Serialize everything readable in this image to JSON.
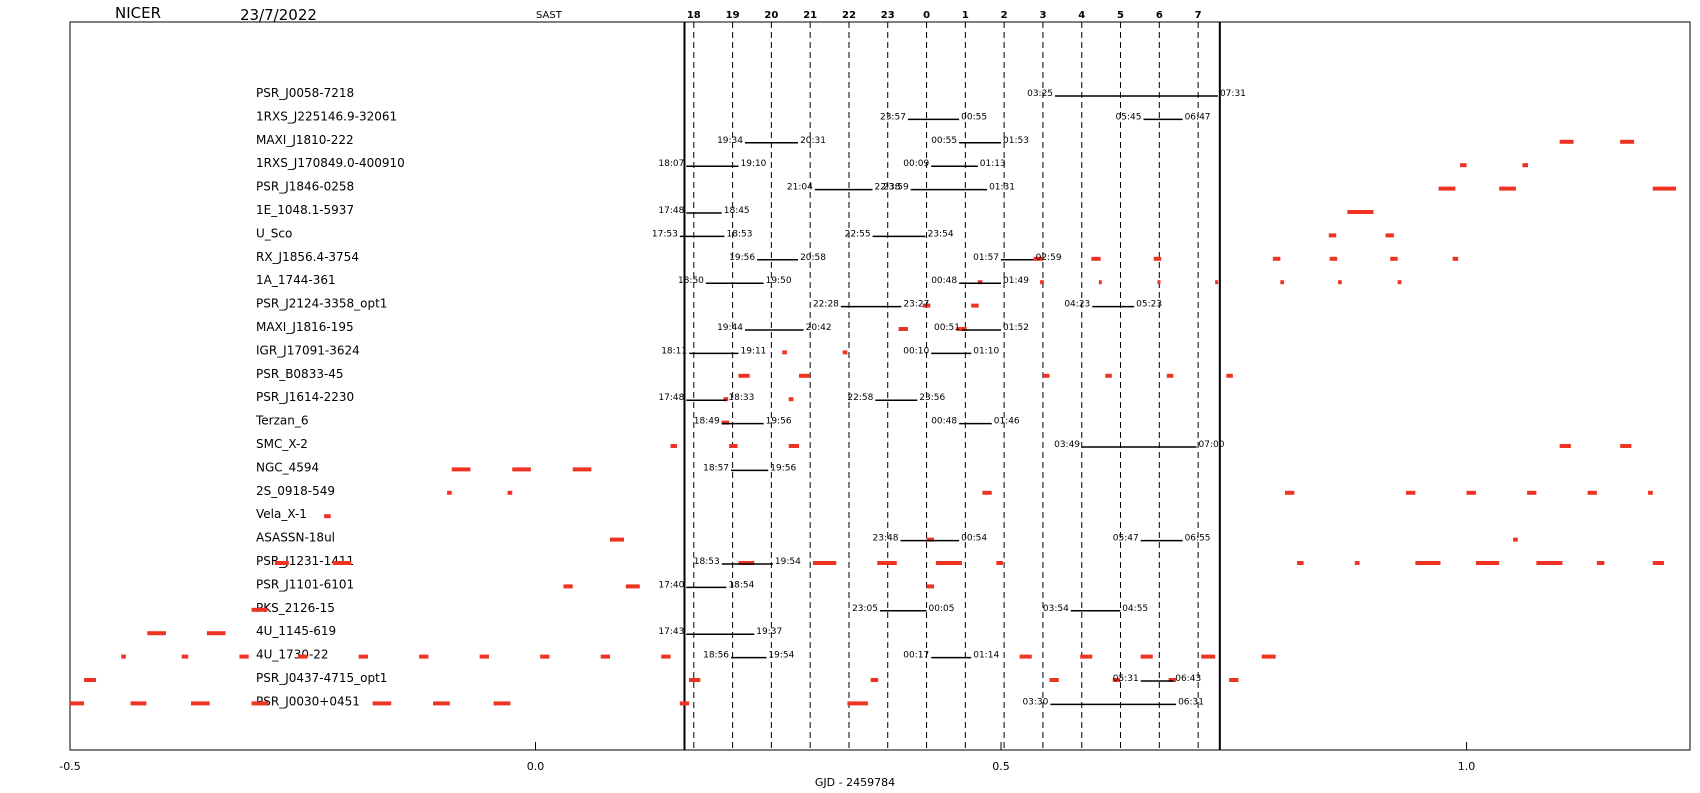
{
  "header": {
    "instrument": "NICER",
    "date": "23/7/2022",
    "tz": "SAST"
  },
  "colors": {
    "visibility": "#ee3322",
    "axis": "#000000"
  },
  "chart_data": {
    "type": "scatter",
    "xlabel": "GJD -  2459784",
    "xlim": [
      -0.5,
      1.24
    ],
    "xticks": [
      {
        "v": -0.5,
        "label": "-0.5"
      },
      {
        "v": 0.0,
        "label": "0.0"
      },
      {
        "v": 0.5,
        "label": "0.5"
      },
      {
        "v": 1.0,
        "label": "1.0"
      }
    ],
    "night_window": [
      0.16,
      0.735
    ],
    "hour_marks": [
      {
        "label": "18",
        "x": 0.17
      },
      {
        "label": "19",
        "x": 0.2117
      },
      {
        "label": "20",
        "x": 0.2533
      },
      {
        "label": "21",
        "x": 0.295
      },
      {
        "label": "22",
        "x": 0.3367
      },
      {
        "label": "23",
        "x": 0.3783
      },
      {
        "label": "0",
        "x": 0.42
      },
      {
        "label": "1",
        "x": 0.4617
      },
      {
        "label": "2",
        "x": 0.5033
      },
      {
        "label": "3",
        "x": 0.545
      },
      {
        "label": "4",
        "x": 0.5867
      },
      {
        "label": "5",
        "x": 0.6283
      },
      {
        "label": "6",
        "x": 0.67
      },
      {
        "label": "7",
        "x": 0.7117
      }
    ],
    "targets": [
      {
        "name": "PSR_J0058-7218",
        "windows": [
          {
            "s": 0.558,
            "e": 0.733,
            "ls": "03:25",
            "le": "07:31"
          }
        ],
        "marks": []
      },
      {
        "name": "1RXS_J225146.9-32061",
        "windows": [
          {
            "s": 0.4,
            "e": 0.455,
            "ls": "23:57",
            "le": "00:55"
          },
          {
            "s": 0.653,
            "e": 0.695,
            "ls": "05:45",
            "le": "06:47"
          }
        ],
        "marks": []
      },
      {
        "name": "MAXI_J1810-222",
        "windows": [
          {
            "s": 0.225,
            "e": 0.282,
            "ls": "19:34",
            "le": "20:31"
          },
          {
            "s": 0.455,
            "e": 0.5,
            "ls": "00:55",
            "le": "01:53"
          }
        ],
        "marks": [
          [
            1.1,
            1.115
          ],
          [
            1.165,
            1.18
          ]
        ]
      },
      {
        "name": "1RXS_J170849.0-400910",
        "windows": [
          {
            "s": 0.162,
            "e": 0.218,
            "ls": "18:07",
            "le": "19:10"
          },
          {
            "s": 0.425,
            "e": 0.475,
            "ls": "00:09",
            "le": "01:13"
          }
        ],
        "marks": [
          [
            0.993,
            1.0
          ],
          [
            1.06,
            1.066
          ]
        ]
      },
      {
        "name": "PSR_J1846-0258",
        "windows": [
          {
            "s": 0.3,
            "e": 0.362,
            "ls": "21:04",
            "le": "22:38"
          },
          {
            "s": 0.403,
            "e": 0.485,
            "ls": "23:59",
            "le": "01:31"
          }
        ],
        "marks": [
          [
            0.97,
            0.988
          ],
          [
            1.035,
            1.053
          ],
          [
            1.2,
            1.225
          ]
        ]
      },
      {
        "name": "1E_1048.1-5937",
        "windows": [
          {
            "s": 0.162,
            "e": 0.2,
            "ls": "17:48",
            "le": "18:45"
          }
        ],
        "marks": [
          [
            0.872,
            0.9
          ]
        ]
      },
      {
        "name": "U_Sco",
        "windows": [
          {
            "s": 0.155,
            "e": 0.203,
            "ls": "17:53",
            "le": "18:53"
          },
          {
            "s": 0.362,
            "e": 0.419,
            "ls": "22:55",
            "le": "23:54"
          }
        ],
        "marks": [
          [
            0.852,
            0.86
          ],
          [
            0.913,
            0.922
          ]
        ]
      },
      {
        "name": "RX_J1856.4-3754",
        "windows": [
          {
            "s": 0.238,
            "e": 0.282,
            "ls": "19:56",
            "le": "20:58"
          },
          {
            "s": 0.5,
            "e": 0.535,
            "ls": "01:57",
            "le": "02:59"
          }
        ],
        "marks": [
          [
            0.535,
            0.545
          ],
          [
            0.597,
            0.607
          ],
          [
            0.664,
            0.672
          ],
          [
            0.792,
            0.8
          ],
          [
            0.853,
            0.861
          ],
          [
            0.918,
            0.926
          ],
          [
            0.985,
            0.991
          ]
        ]
      },
      {
        "name": "1A_1744-361",
        "windows": [
          {
            "s": 0.183,
            "e": 0.245,
            "ls": "18:50",
            "le": "19:50"
          },
          {
            "s": 0.455,
            "e": 0.5,
            "ls": "00:48",
            "le": "01:49"
          }
        ],
        "marks": [
          [
            0.475,
            0.48
          ],
          [
            0.542,
            0.546
          ],
          [
            0.605,
            0.608
          ],
          [
            0.668,
            0.671
          ],
          [
            0.73,
            0.733
          ],
          [
            0.8,
            0.804
          ],
          [
            0.862,
            0.866
          ],
          [
            0.926,
            0.93
          ]
        ]
      },
      {
        "name": "PSR_J2124-3358_opt1",
        "windows": [
          {
            "s": 0.328,
            "e": 0.393,
            "ls": "22:28",
            "le": "23:27"
          },
          {
            "s": 0.598,
            "e": 0.643,
            "ls": "04:23",
            "le": "05:23"
          }
        ],
        "marks": [
          [
            0.416,
            0.424
          ],
          [
            0.468,
            0.476
          ]
        ]
      },
      {
        "name": "MAXI_J1816-195",
        "windows": [
          {
            "s": 0.225,
            "e": 0.288,
            "ls": "19:44",
            "le": "20:42"
          },
          {
            "s": 0.458,
            "e": 0.5,
            "ls": "00:51",
            "le": "01:52"
          }
        ],
        "marks": [
          [
            0.39,
            0.4
          ],
          [
            0.452,
            0.463
          ]
        ]
      },
      {
        "name": "IGR_J17091-3624",
        "windows": [
          {
            "s": 0.165,
            "e": 0.218,
            "ls": "18:11",
            "le": "19:11"
          },
          {
            "s": 0.425,
            "e": 0.468,
            "ls": "00:10",
            "le": "01:10"
          }
        ],
        "marks": [
          [
            0.265,
            0.27
          ],
          [
            0.33,
            0.335
          ]
        ]
      },
      {
        "name": "PSR_B0833-45",
        "windows": [],
        "marks": [
          [
            0.218,
            0.23
          ],
          [
            0.283,
            0.295
          ],
          [
            0.545,
            0.552
          ],
          [
            0.612,
            0.619
          ],
          [
            0.678,
            0.685
          ],
          [
            0.742,
            0.749
          ]
        ]
      },
      {
        "name": "PSR_J1614-2230",
        "windows": [
          {
            "s": 0.162,
            "e": 0.205,
            "ls": "17:48",
            "le": "18:33"
          },
          {
            "s": 0.365,
            "e": 0.41,
            "ls": "22:58",
            "le": "23:56"
          }
        ],
        "marks": [
          [
            0.202,
            0.207
          ],
          [
            0.272,
            0.277
          ]
        ]
      },
      {
        "name": "Terzan_6",
        "windows": [
          {
            "s": 0.2,
            "e": 0.245,
            "ls": "18:49",
            "le": "19:56"
          },
          {
            "s": 0.455,
            "e": 0.49,
            "ls": "00:48",
            "le": "01:46"
          }
        ],
        "marks": [
          [
            0.2,
            0.208
          ]
        ]
      },
      {
        "name": "SMC_X-2",
        "windows": [
          {
            "s": 0.587,
            "e": 0.71,
            "ls": "03:49",
            "le": "07:00"
          }
        ],
        "marks": [
          [
            0.145,
            0.152
          ],
          [
            0.208,
            0.217
          ],
          [
            0.272,
            0.283
          ],
          [
            1.1,
            1.112
          ],
          [
            1.165,
            1.177
          ]
        ]
      },
      {
        "name": "NGC_4594",
        "windows": [
          {
            "s": 0.21,
            "e": 0.25,
            "ls": "18:57",
            "le": "19:56"
          }
        ],
        "marks": [
          [
            -0.09,
            -0.07
          ],
          [
            -0.025,
            -0.005
          ],
          [
            0.04,
            0.06
          ]
        ]
      },
      {
        "name": "2S_0918-549",
        "windows": [],
        "marks": [
          [
            -0.095,
            -0.09
          ],
          [
            -0.03,
            -0.025
          ],
          [
            0.48,
            0.49
          ],
          [
            0.805,
            0.815
          ],
          [
            0.935,
            0.945
          ],
          [
            1.0,
            1.01
          ],
          [
            1.065,
            1.075
          ],
          [
            1.13,
            1.14
          ],
          [
            1.195,
            1.2
          ]
        ]
      },
      {
        "name": "Vela_X-1",
        "windows": [],
        "marks": [
          [
            -0.227,
            -0.22
          ]
        ]
      },
      {
        "name": "ASASSN-18ul",
        "windows": [
          {
            "s": 0.392,
            "e": 0.455,
            "ls": "23:48",
            "le": "00:54"
          },
          {
            "s": 0.65,
            "e": 0.695,
            "ls": "05:47",
            "le": "06:55"
          }
        ],
        "marks": [
          [
            0.08,
            0.095
          ],
          [
            0.42,
            0.428
          ],
          [
            1.05,
            1.055
          ]
        ]
      },
      {
        "name": "PSR_J1231-1411",
        "windows": [
          {
            "s": 0.2,
            "e": 0.255,
            "ls": "18:53",
            "le": "19:54"
          }
        ],
        "marks": [
          [
            -0.28,
            -0.265
          ],
          [
            -0.218,
            -0.198
          ],
          [
            0.218,
            0.235
          ],
          [
            0.298,
            0.323
          ],
          [
            0.367,
            0.388
          ],
          [
            0.43,
            0.458
          ],
          [
            0.495,
            0.502
          ],
          [
            0.818,
            0.825
          ],
          [
            0.88,
            0.885
          ],
          [
            0.945,
            0.972
          ],
          [
            1.01,
            1.035
          ],
          [
            1.075,
            1.103
          ],
          [
            1.14,
            1.148
          ],
          [
            1.2,
            1.212
          ]
        ]
      },
      {
        "name": "PSR_J1101-6101",
        "windows": [
          {
            "s": 0.162,
            "e": 0.205,
            "ls": "17:40",
            "le": "18:54"
          }
        ],
        "marks": [
          [
            0.03,
            0.04
          ],
          [
            0.097,
            0.112
          ],
          [
            0.42,
            0.428
          ]
        ]
      },
      {
        "name": "PKS_2126-15",
        "windows": [
          {
            "s": 0.37,
            "e": 0.42,
            "ls": "23:05",
            "le": "00:05"
          },
          {
            "s": 0.575,
            "e": 0.628,
            "ls": "03:54",
            "le": "04:55"
          }
        ],
        "marks": [
          [
            -0.305,
            -0.288
          ]
        ]
      },
      {
        "name": "4U_1145-619",
        "windows": [
          {
            "s": 0.162,
            "e": 0.235,
            "ls": "17:43",
            "le": "19:37"
          }
        ],
        "marks": [
          [
            -0.417,
            -0.397
          ],
          [
            -0.353,
            -0.333
          ]
        ]
      },
      {
        "name": "4U_1730-22",
        "windows": [
          {
            "s": 0.21,
            "e": 0.248,
            "ls": "18:56",
            "le": "19:54"
          },
          {
            "s": 0.425,
            "e": 0.468,
            "ls": "00:17",
            "le": "01:14"
          }
        ],
        "marks": [
          [
            -0.445,
            -0.44
          ],
          [
            -0.38,
            -0.373
          ],
          [
            -0.318,
            -0.308
          ],
          [
            -0.255,
            -0.245
          ],
          [
            -0.19,
            -0.18
          ],
          [
            -0.125,
            -0.115
          ],
          [
            -0.06,
            -0.05
          ],
          [
            0.005,
            0.015
          ],
          [
            0.07,
            0.08
          ],
          [
            0.135,
            0.145
          ],
          [
            0.52,
            0.533
          ],
          [
            0.585,
            0.598
          ],
          [
            0.65,
            0.663
          ],
          [
            0.715,
            0.73
          ],
          [
            0.78,
            0.795
          ]
        ]
      },
      {
        "name": "PSR_J0437-4715_opt1",
        "windows": [
          {
            "s": 0.65,
            "e": 0.685,
            "ls": "05:31",
            "le": "06:43"
          }
        ],
        "marks": [
          [
            -0.485,
            -0.472
          ],
          [
            0.165,
            0.177
          ],
          [
            0.36,
            0.368
          ],
          [
            0.552,
            0.562
          ],
          [
            0.62,
            0.628
          ],
          [
            0.68,
            0.688
          ],
          [
            0.745,
            0.755
          ]
        ]
      },
      {
        "name": "PSR_J0030+0451",
        "windows": [
          {
            "s": 0.553,
            "e": 0.688,
            "ls": "03:30",
            "le": "06:31"
          }
        ],
        "marks": [
          [
            -0.5,
            -0.485
          ],
          [
            -0.435,
            -0.418
          ],
          [
            -0.37,
            -0.35
          ],
          [
            -0.305,
            -0.287
          ],
          [
            -0.175,
            -0.155
          ],
          [
            -0.11,
            -0.092
          ],
          [
            -0.045,
            -0.027
          ],
          [
            0.155,
            0.165
          ],
          [
            0.335,
            0.357
          ]
        ]
      }
    ]
  }
}
